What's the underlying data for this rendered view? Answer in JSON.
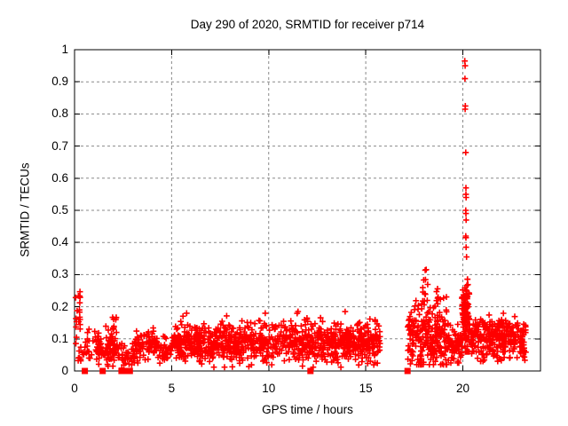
{
  "window": {
    "title": "Day 290 of 2020, SRMTID for receiver p714"
  },
  "colors": {
    "background": "#ffffff",
    "marker": "#ff0000",
    "grid": "#898989",
    "axis": "#000000",
    "text": "#000000"
  },
  "chart_data": {
    "type": "scatter",
    "title": "Day 290 of 2020, SRMTID for receiver p714",
    "xlabel": "GPS time / hours",
    "ylabel": "SRMTID / TECUs",
    "xlim": [
      0,
      24
    ],
    "ylim": [
      0,
      1
    ],
    "xtick_values": [
      0,
      5,
      10,
      15,
      20
    ],
    "xtick_labels": [
      "0",
      "5",
      "10",
      "15",
      "20"
    ],
    "ytick_values": [
      0,
      0.1,
      0.2,
      0.3,
      0.4,
      0.5,
      0.6,
      0.7,
      0.8,
      0.9,
      1
    ],
    "ytick_labels": [
      "0",
      "0.1",
      "0.2",
      "0.3",
      "0.4",
      "0.5",
      "0.6",
      "0.7",
      "0.8",
      "0.9",
      "1"
    ],
    "grid": true,
    "legend": "none",
    "marker": "plus",
    "marker_color": "#ff0000",
    "seed": 1290714,
    "band_segments": [
      {
        "x0": 0.05,
        "x1": 0.32,
        "n": 26,
        "dist": "uniform",
        "ymin": 0.03,
        "ymax": 0.255
      },
      {
        "x0": 0.35,
        "x1": 1.05,
        "n": 20,
        "dist": "gauss",
        "c": 0.075,
        "s": 0.025,
        "ymin": 0.03,
        "ymax": 0.13
      },
      {
        "x0": 1.05,
        "x1": 2.2,
        "n": 95,
        "dist": "gauss",
        "c": 0.07,
        "s": 0.028,
        "ymin": 0.015,
        "ymax": 0.145
      },
      {
        "x0": 1.95,
        "x1": 2.15,
        "n": 8,
        "dist": "uniform",
        "ymin": 0.12,
        "ymax": 0.17
      },
      {
        "x0": 2.25,
        "x1": 3.1,
        "n": 45,
        "dist": "gauss",
        "c": 0.045,
        "s": 0.02,
        "ymin": 0.005,
        "ymax": 0.085
      },
      {
        "x0": 3.1,
        "x1": 4.4,
        "n": 95,
        "dist": "gauss",
        "c": 0.08,
        "s": 0.025,
        "ymin": 0.02,
        "ymax": 0.135
      },
      {
        "x0": 4.4,
        "x1": 5.0,
        "n": 30,
        "dist": "gauss",
        "c": 0.065,
        "s": 0.022,
        "ymin": 0.02,
        "ymax": 0.11
      },
      {
        "x0": 5.0,
        "x1": 15.75,
        "n": 980,
        "dist": "gauss",
        "c": 0.088,
        "s": 0.031,
        "ymin": 0.012,
        "ymax": 0.185
      },
      {
        "x0": 17.15,
        "x1": 19.25,
        "n": 230,
        "dist": "gauss",
        "c": 0.105,
        "s": 0.05,
        "ymin": 0.02,
        "ymax": 0.3
      },
      {
        "x0": 17.85,
        "x1": 18.2,
        "n": 14,
        "dist": "uniform",
        "ymin": 0.2,
        "ymax": 0.325
      },
      {
        "x0": 18.55,
        "x1": 18.75,
        "n": 6,
        "dist": "uniform",
        "ymin": 0.2,
        "ymax": 0.28
      },
      {
        "x0": 19.25,
        "x1": 19.95,
        "n": 70,
        "dist": "gauss",
        "c": 0.08,
        "s": 0.03,
        "ymin": 0.025,
        "ymax": 0.15
      },
      {
        "x0": 19.95,
        "x1": 20.35,
        "n": 110,
        "dist": "gauss",
        "c": 0.17,
        "s": 0.06,
        "ymin": 0.06,
        "ymax": 0.36
      },
      {
        "x0": 20.4,
        "x1": 23.25,
        "n": 300,
        "dist": "gauss",
        "c": 0.095,
        "s": 0.035,
        "ymin": 0.03,
        "ymax": 0.215
      }
    ],
    "outlier_points": [
      [
        20.1,
        0.965
      ],
      [
        20.12,
        0.95
      ],
      [
        20.11,
        0.91
      ],
      [
        20.13,
        0.825
      ],
      [
        20.12,
        0.815
      ],
      [
        20.15,
        0.68
      ],
      [
        20.16,
        0.57
      ],
      [
        20.16,
        0.55
      ],
      [
        20.17,
        0.54
      ],
      [
        20.15,
        0.5
      ],
      [
        20.16,
        0.49
      ],
      [
        20.17,
        0.47
      ],
      [
        20.15,
        0.42
      ],
      [
        20.16,
        0.415
      ],
      [
        20.17,
        0.385
      ],
      [
        20.19,
        0.355
      ]
    ],
    "zero_markers": {
      "shape": "filled-square",
      "y": 0,
      "x": [
        0.53,
        1.45,
        2.42,
        2.7,
        2.85,
        12.15,
        17.15
      ]
    }
  }
}
